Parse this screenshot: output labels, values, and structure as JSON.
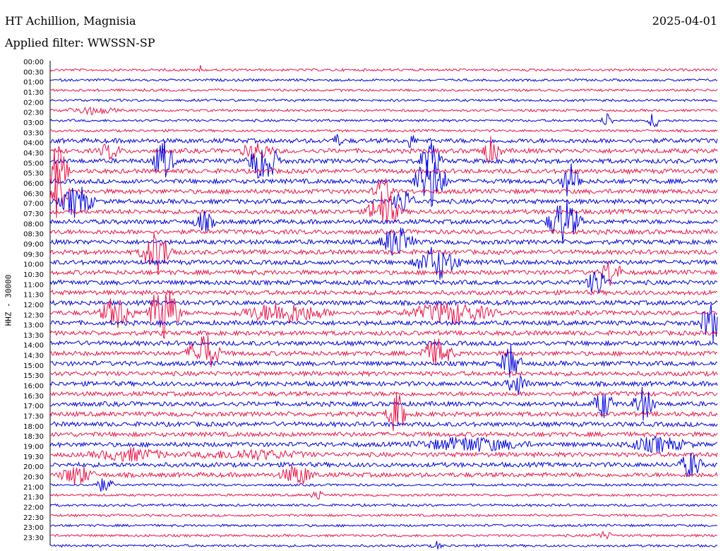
{
  "header": {
    "station": "HT Achillion, Magnisia",
    "date": "2025-04-01",
    "filter": "Applied filter: WWSSN-SP"
  },
  "chart_data": {
    "type": "helicorder",
    "ylabel": "HHZ - 30000",
    "row_labels": [
      "00:00",
      "00:30",
      "01:00",
      "01:30",
      "02:00",
      "02:30",
      "03:00",
      "03:30",
      "04:00",
      "04:30",
      "05:00",
      "05:30",
      "06:00",
      "06:30",
      "07:00",
      "07:30",
      "08:00",
      "08:30",
      "09:00",
      "09:30",
      "10:00",
      "10:30",
      "11:00",
      "11:30",
      "12:00",
      "12:30",
      "13:00",
      "13:30",
      "14:00",
      "14:30",
      "15:00",
      "15:30",
      "16:00",
      "16:30",
      "17:00",
      "17:30",
      "18:00",
      "18:30",
      "19:00",
      "19:30",
      "20:00",
      "20:30",
      "21:00",
      "21:30",
      "22:00",
      "22:30",
      "23:00",
      "23:30"
    ],
    "colors": [
      "#0000d9",
      "#e8144a"
    ],
    "colors_order": "rows alternate starting with red at 00:00",
    "events": [
      {
        "row": 0,
        "x": 0.225,
        "amp": 8,
        "dur": 0.004
      },
      {
        "row": 4,
        "x": 0.06,
        "amp": 5,
        "dur": 0.05
      },
      {
        "row": 5,
        "x": 0.835,
        "amp": 12,
        "dur": 0.01
      },
      {
        "row": 5,
        "x": 0.905,
        "amp": 14,
        "dur": 0.01
      },
      {
        "row": 7,
        "x": 0.43,
        "amp": 8,
        "dur": 0.01
      },
      {
        "row": 7,
        "x": 0.54,
        "amp": 10,
        "dur": 0.01
      },
      {
        "row": 8,
        "x": 0.09,
        "amp": 12,
        "dur": 0.02
      },
      {
        "row": 8,
        "x": 0.31,
        "amp": 12,
        "dur": 0.03
      },
      {
        "row": 8,
        "x": 0.66,
        "amp": 18,
        "dur": 0.02
      },
      {
        "row": 9,
        "x": 0.17,
        "amp": 30,
        "dur": 0.02
      },
      {
        "row": 9,
        "x": 0.32,
        "amp": 30,
        "dur": 0.03
      },
      {
        "row": 9,
        "x": 0.57,
        "amp": 30,
        "dur": 0.02
      },
      {
        "row": 10,
        "x": 0.01,
        "amp": 40,
        "dur": 0.02
      },
      {
        "row": 11,
        "x": 0.57,
        "amp": 40,
        "dur": 0.03
      },
      {
        "row": 11,
        "x": 0.78,
        "amp": 25,
        "dur": 0.02
      },
      {
        "row": 12,
        "x": 0.01,
        "amp": 40,
        "dur": 0.02
      },
      {
        "row": 12,
        "x": 0.5,
        "amp": 20,
        "dur": 0.02
      },
      {
        "row": 13,
        "x": 0.04,
        "amp": 25,
        "dur": 0.03
      },
      {
        "row": 13,
        "x": 0.53,
        "amp": 18,
        "dur": 0.02
      },
      {
        "row": 14,
        "x": 0.5,
        "amp": 30,
        "dur": 0.03
      },
      {
        "row": 15,
        "x": 0.23,
        "amp": 15,
        "dur": 0.02
      },
      {
        "row": 15,
        "x": 0.77,
        "amp": 35,
        "dur": 0.03
      },
      {
        "row": 17,
        "x": 0.52,
        "amp": 25,
        "dur": 0.03
      },
      {
        "row": 18,
        "x": 0.16,
        "amp": 30,
        "dur": 0.03
      },
      {
        "row": 19,
        "x": 0.58,
        "amp": 25,
        "dur": 0.04
      },
      {
        "row": 20,
        "x": 0.84,
        "amp": 20,
        "dur": 0.02
      },
      {
        "row": 21,
        "x": 0.82,
        "amp": 20,
        "dur": 0.02
      },
      {
        "row": 24,
        "x": 0.1,
        "amp": 25,
        "dur": 0.03
      },
      {
        "row": 24,
        "x": 0.17,
        "amp": 45,
        "dur": 0.03
      },
      {
        "row": 24,
        "x": 0.35,
        "amp": 15,
        "dur": 0.08
      },
      {
        "row": 24,
        "x": 0.6,
        "amp": 15,
        "dur": 0.08
      },
      {
        "row": 25,
        "x": 0.99,
        "amp": 30,
        "dur": 0.02
      },
      {
        "row": 28,
        "x": 0.23,
        "amp": 30,
        "dur": 0.03
      },
      {
        "row": 28,
        "x": 0.58,
        "amp": 20,
        "dur": 0.03
      },
      {
        "row": 29,
        "x": 0.69,
        "amp": 25,
        "dur": 0.02
      },
      {
        "row": 31,
        "x": 0.7,
        "amp": 15,
        "dur": 0.02
      },
      {
        "row": 34,
        "x": 0.52,
        "amp": 30,
        "dur": 0.02
      },
      {
        "row": 33,
        "x": 0.83,
        "amp": 20,
        "dur": 0.02
      },
      {
        "row": 33,
        "x": 0.89,
        "amp": 25,
        "dur": 0.02
      },
      {
        "row": 37,
        "x": 0.63,
        "amp": 10,
        "dur": 0.1
      },
      {
        "row": 37,
        "x": 0.91,
        "amp": 10,
        "dur": 0.06
      },
      {
        "row": 38,
        "x": 0.12,
        "amp": 8,
        "dur": 0.07
      },
      {
        "row": 38,
        "x": 0.3,
        "amp": 6,
        "dur": 0.1
      },
      {
        "row": 39,
        "x": 0.96,
        "amp": 20,
        "dur": 0.02
      },
      {
        "row": 40,
        "x": 0.04,
        "amp": 15,
        "dur": 0.03
      },
      {
        "row": 40,
        "x": 0.37,
        "amp": 15,
        "dur": 0.03
      },
      {
        "row": 41,
        "x": 0.08,
        "amp": 10,
        "dur": 0.02
      },
      {
        "row": 42,
        "x": 0.4,
        "amp": 10,
        "dur": 0.01
      },
      {
        "row": 46,
        "x": 0.83,
        "amp": 5,
        "dur": 0.02
      },
      {
        "row": 47,
        "x": 0.58,
        "amp": 6,
        "dur": 0.01
      }
    ]
  }
}
